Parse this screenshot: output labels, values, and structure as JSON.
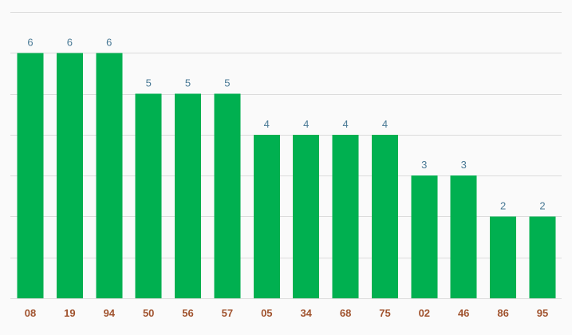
{
  "chart_data": {
    "type": "bar",
    "categories": [
      "08",
      "19",
      "94",
      "50",
      "56",
      "57",
      "05",
      "34",
      "68",
      "75",
      "02",
      "46",
      "86",
      "95"
    ],
    "values": [
      6,
      6,
      6,
      5,
      5,
      5,
      4,
      4,
      4,
      4,
      3,
      3,
      2,
      2
    ],
    "title": "",
    "xlabel": "",
    "ylabel": "",
    "ylim": [
      0,
      7
    ],
    "grid": true,
    "data_labels": true,
    "legend": "none"
  },
  "colors": {
    "bar": "#00b050",
    "data_label": "#4a7a96",
    "tick_label": "#a0522d",
    "grid": "#dcdcdc",
    "background": "#fafafa"
  }
}
